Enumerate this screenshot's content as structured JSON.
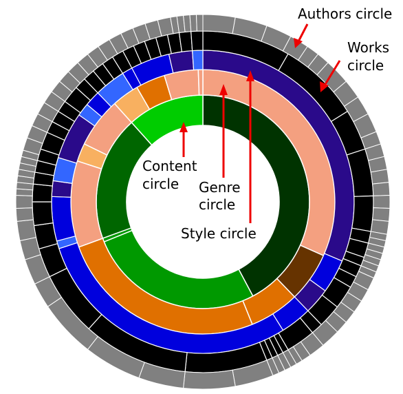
{
  "labels": {
    "authors_circle": "Authors circle",
    "works_line1": "Works",
    "works_line2": "circle",
    "content_line1": "Content",
    "content_line2": "circle",
    "genre_line1": "Genre",
    "genre_line2": "circle",
    "style_circle": "Style circle"
  },
  "colors": {
    "arrow": "#ee0000",
    "separator": "#ffffff",
    "authors_gray": "#808080",
    "works_black": "#000000",
    "style_dark_purple": "#2a0a8a",
    "style_blue": "#0000dd",
    "style_light_blue": "#3366ff",
    "genre_salmon": "#f4a080",
    "genre_orange": "#e07000",
    "genre_light_orange": "#f8b060",
    "genre_brown": "#663300",
    "content_bright_green": "#00cc00",
    "content_dark_green": "#003300",
    "content_mid_green": "#009900",
    "content_forest_green": "#006600"
  }
}
